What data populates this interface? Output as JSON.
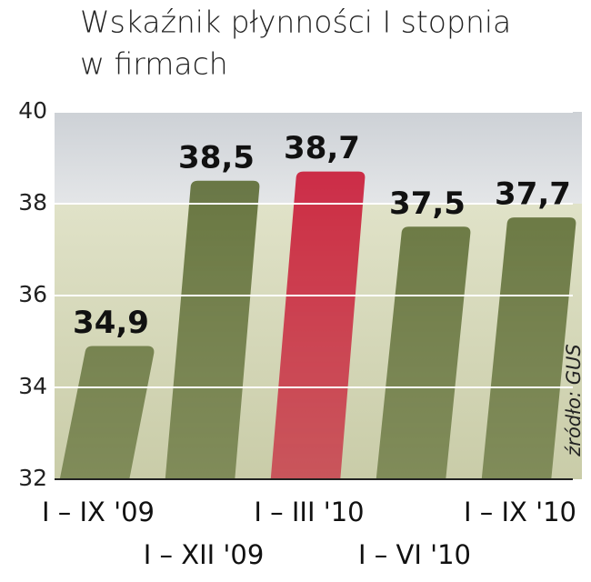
{
  "chart_data": {
    "type": "bar",
    "title": [
      "Wskaźnik płynności I stopnia",
      "w firmach"
    ],
    "source": "źródło: GUS",
    "categories": [
      "I – IX '09",
      "I – XII '09",
      "I – III '10",
      "I – VI '10",
      "I – IX '10"
    ],
    "values": [
      34.9,
      38.5,
      38.7,
      37.5,
      37.7
    ],
    "value_labels": [
      "34,9",
      "38,5",
      "38,7",
      "37,5",
      "37,7"
    ],
    "colors": [
      "#55652b",
      "#55652b",
      "#c8102e",
      "#55652b",
      "#55652b"
    ],
    "ylim": [
      32,
      40
    ],
    "yticks": [
      32,
      34,
      36,
      38,
      40
    ],
    "grid": true
  }
}
